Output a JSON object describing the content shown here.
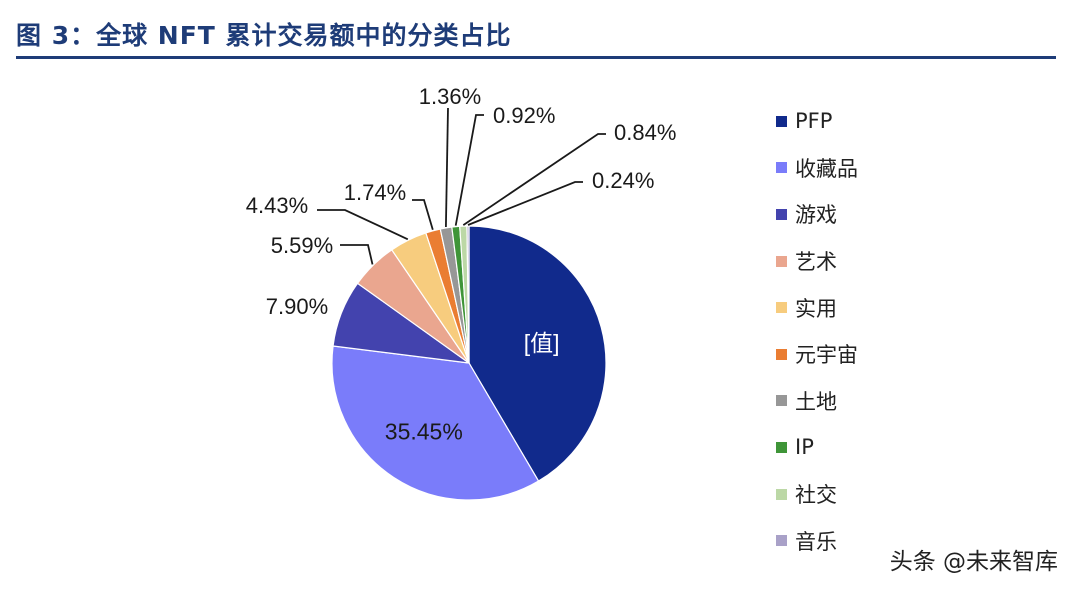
{
  "header": {
    "title": "图 3：全球 NFT 累计交易额中的分类占比"
  },
  "chart_data": {
    "type": "pie",
    "categories": [
      "PFP",
      "收藏品",
      "游戏",
      "艺术",
      "实用",
      "元宇宙",
      "土地",
      "IP",
      "社交",
      "音乐"
    ],
    "values": [
      41.53,
      35.45,
      7.9,
      5.59,
      4.43,
      1.74,
      1.36,
      0.92,
      0.84,
      0.24
    ],
    "data_labels": [
      "[值]",
      "35.45%",
      "7.90%",
      "5.59%",
      "4.43%",
      "1.74%",
      "1.36%",
      "0.92%",
      "0.84%",
      "0.24%"
    ],
    "colors": [
      "#112a8c",
      "#7a7cfa",
      "#4343ae",
      "#eaa68f",
      "#f7cc7e",
      "#ea7d32",
      "#979797",
      "#3f9538",
      "#bcd8a6",
      "#a9a1c8"
    ],
    "legend_position": "right"
  },
  "watermark": "头条 @未来智库"
}
